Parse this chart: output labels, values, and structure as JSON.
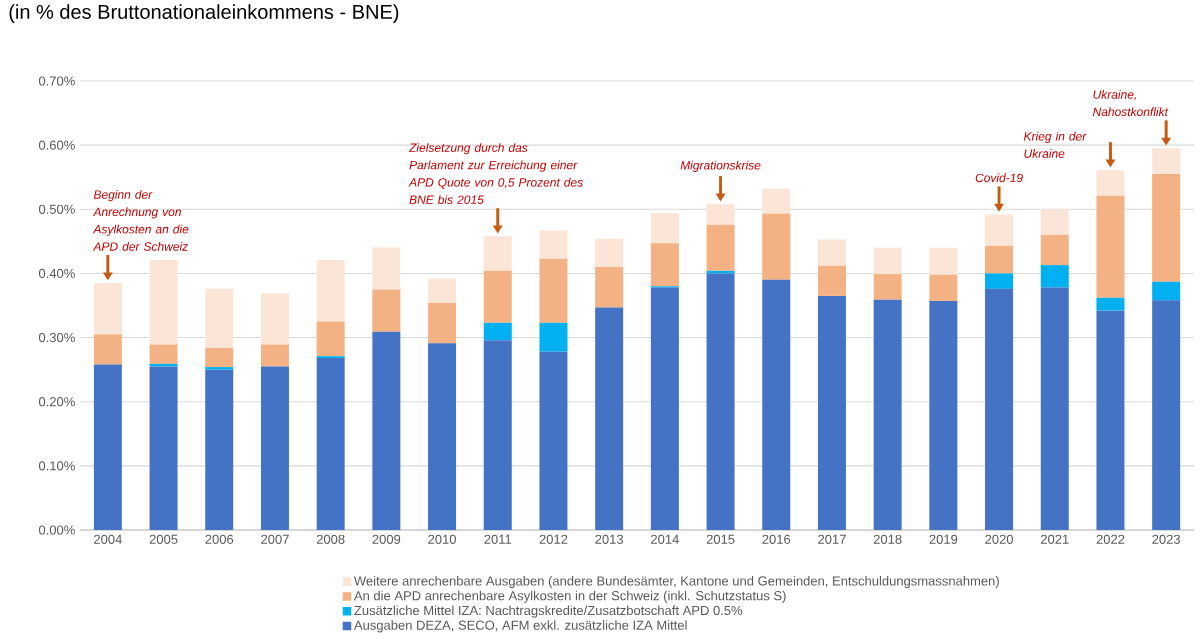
{
  "chart_data": {
    "type": "bar",
    "stacked": true,
    "title": "(in % des Bruttonationaleinkommens - BNE)",
    "categories": [
      "2004",
      "2005",
      "2006",
      "2007",
      "2008",
      "2009",
      "2010",
      "2011",
      "2012",
      "2013",
      "2014",
      "2015",
      "2016",
      "2017",
      "2018",
      "2019",
      "2020",
      "2021",
      "2022",
      "2023"
    ],
    "series": [
      {
        "name": "Ausgaben DEZA, SECO, AFM exkl. zusätzliche IZA Mittel",
        "color": "#4472c4",
        "values": [
          0.258,
          0.255,
          0.25,
          0.255,
          0.268,
          0.309,
          0.291,
          0.296,
          0.278,
          0.347,
          0.378,
          0.4,
          0.39,
          0.365,
          0.359,
          0.357,
          0.376,
          0.378,
          0.342,
          0.358
        ]
      },
      {
        "name": "Zusätzliche Mittel IZA: Nachtragskredite/Zusatzbotschaft APD 0.5%",
        "color": "#00b0f0",
        "values": [
          0,
          0.004,
          0.004,
          0,
          0.003,
          0,
          0,
          0.027,
          0.045,
          0,
          0.002,
          0.004,
          0,
          0,
          0,
          0,
          0.024,
          0.035,
          0.02,
          0.029
        ]
      },
      {
        "name": "An die APD anrechenbare Asylkosten in der Schweiz (inkl. Schutzstatus S)",
        "color": "#f4b183",
        "values": [
          0.047,
          0.03,
          0.03,
          0.034,
          0.054,
          0.066,
          0.063,
          0.081,
          0.1,
          0.063,
          0.067,
          0.072,
          0.103,
          0.047,
          0.04,
          0.041,
          0.043,
          0.047,
          0.159,
          0.168
        ]
      },
      {
        "name": "Weitere anrechenbare Ausgaben (andere Bundesämter, Kantone und Gemeinden, Entschuldungsmassnahmen)",
        "color": "#fbe5d6",
        "values": [
          0.08,
          0.132,
          0.092,
          0.08,
          0.096,
          0.066,
          0.038,
          0.054,
          0.044,
          0.044,
          0.047,
          0.032,
          0.039,
          0.041,
          0.041,
          0.042,
          0.049,
          0.04,
          0.04,
          0.04
        ]
      }
    ],
    "ylim": [
      0,
      0.7
    ],
    "yticks": [
      {
        "value": 0,
        "label": "0.00%"
      },
      {
        "value": 0.1,
        "label": "0.10%"
      },
      {
        "value": 0.2,
        "label": "0.20%"
      },
      {
        "value": 0.3,
        "label": "0.30%"
      },
      {
        "value": 0.4,
        "label": "0.40%"
      },
      {
        "value": 0.5,
        "label": "0.50%"
      },
      {
        "value": 0.6,
        "label": "0.60%"
      },
      {
        "value": 0.7,
        "label": "0.70%"
      }
    ],
    "grid": "y",
    "legend": "bottom",
    "annotations": [
      {
        "text": "Beginn der Anrechnung von Asylkosten an die APD der Schweiz",
        "x": "2004",
        "y": 0.385
      },
      {
        "text": "Zielsetzung durch das Parlament zur Erreichung einer APD Quote von 0,5 Prozent des BNE bis 2015",
        "x": "2011",
        "y": 0.458
      },
      {
        "text": "Migrationskrise",
        "x": "2015",
        "y": 0.508
      },
      {
        "text": "Covid-19",
        "x": "2020",
        "y": 0.492
      },
      {
        "text": "Krieg in der Ukraine",
        "x": "2022",
        "y": 0.561
      },
      {
        "text": "Ukraine, Nahostkonflikt",
        "x": "2023",
        "y": 0.595
      }
    ]
  }
}
